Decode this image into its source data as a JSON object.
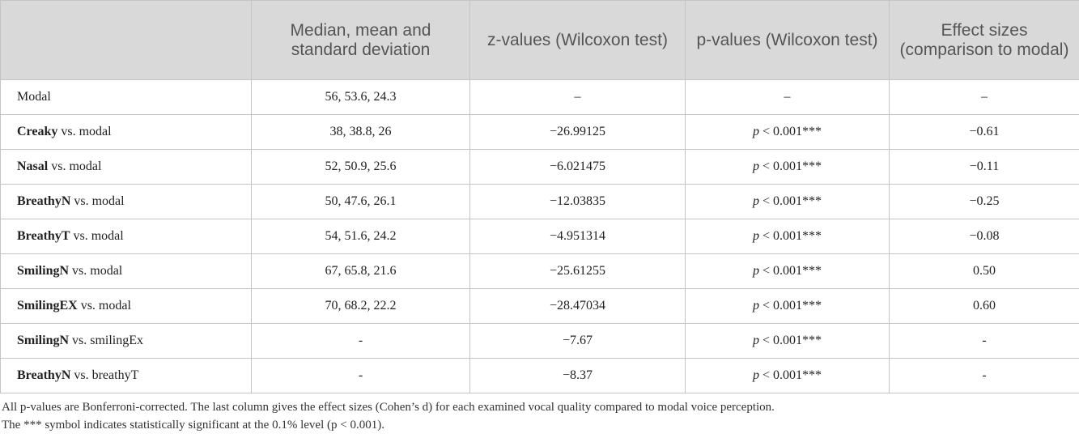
{
  "table": {
    "header": [
      "",
      "Median, mean and standard deviation",
      "z-values (Wilcoxon test)",
      "p-values (Wilcoxon test)",
      "Effect sizes (comparison to modal)"
    ],
    "rows": [
      {
        "label": "Modal",
        "cells": [
          "56, 53.6, 24.3",
          "–",
          "–",
          "–"
        ]
      },
      {
        "bold": "Creaky",
        "label": "vs. modal",
        "cells": [
          "38, 38.8, 26",
          "−26.99125",
          {
            "italic": "p",
            "text": "< 0.001***"
          },
          "−0.61"
        ]
      },
      {
        "bold": "Nasal",
        "label": "vs. modal",
        "cells": [
          "52, 50.9, 25.6",
          "−6.021475",
          {
            "italic": "p",
            "text": "< 0.001***"
          },
          "−0.11"
        ]
      },
      {
        "bold": "BreathyN",
        "label": "vs. modal",
        "cells": [
          "50, 47.6, 26.1",
          "−12.03835",
          {
            "italic": "p",
            "text": "< 0.001***"
          },
          "−0.25"
        ]
      },
      {
        "bold": "BreathyT",
        "label": "vs. modal",
        "cells": [
          "54, 51.6, 24.2",
          "−4.951314",
          {
            "italic": "p",
            "text": "< 0.001***"
          },
          "−0.08"
        ]
      },
      {
        "bold": "SmilingN",
        "label": "vs. modal",
        "cells": [
          "67, 65.8, 21.6",
          "−25.61255",
          {
            "italic": "p",
            "text": "< 0.001***"
          },
          "0.50"
        ]
      },
      {
        "bold": "SmilingEX",
        "label": "vs. modal",
        "cells": [
          "70, 68.2, 22.2",
          "−28.47034",
          {
            "italic": "p",
            "text": "< 0.001***"
          },
          "0.60"
        ]
      },
      {
        "bold": "SmilingN",
        "label": "vs. smilingEx",
        "cells": [
          "-",
          "−7.67",
          {
            "italic": "p",
            "text": "< 0.001***"
          },
          "-"
        ]
      },
      {
        "bold": "BreathyN",
        "label": "vs. breathyT",
        "cells": [
          "-",
          "−8.37",
          {
            "italic": "p",
            "text": "< 0.001***"
          },
          "-"
        ]
      }
    ]
  },
  "footnotes": [
    "All p-values are Bonferroni-corrected. The last column gives the effect sizes (Cohen’s d) for each examined vocal quality compared to modal voice perception.",
    "The *** symbol indicates statistically significant at the 0.1% level (p < 0.001)."
  ]
}
